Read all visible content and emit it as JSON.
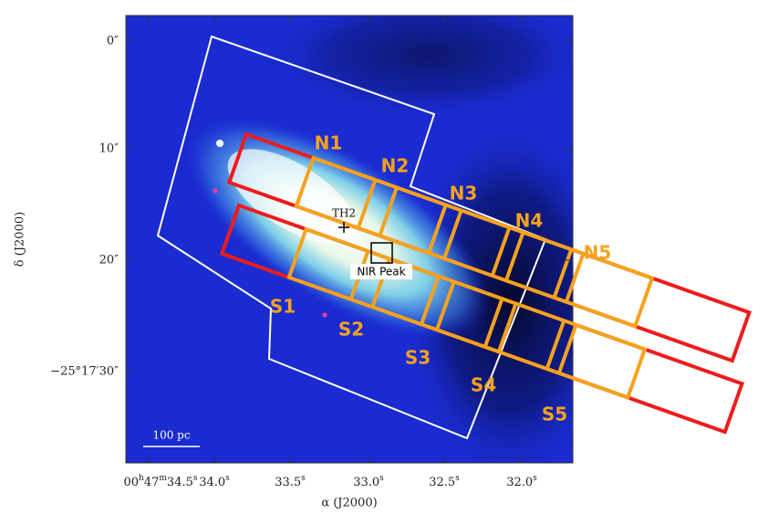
{
  "axes": {
    "y_label": "δ (J2000)",
    "x_label": "α (J2000)",
    "y_ticks": [
      "0″",
      "10″",
      "20″",
      "−25°17′30″"
    ],
    "x_ticks": [
      [
        [
          "00",
          "h"
        ],
        [
          "47",
          "m"
        ],
        [
          "34.5",
          "s"
        ]
      ],
      [
        [
          "34.0",
          "s"
        ]
      ],
      [
        [
          "33.5",
          "s"
        ]
      ],
      [
        [
          "33.0",
          "s"
        ]
      ],
      [
        [
          "32.5",
          "s"
        ]
      ],
      [
        [
          "32.0",
          "s"
        ]
      ]
    ]
  },
  "regions": {
    "north": [
      "N1",
      "N2",
      "N3",
      "N4",
      "N5"
    ],
    "south": [
      "S1",
      "S2",
      "S3",
      "S4",
      "S5"
    ]
  },
  "markers": {
    "th2": "TH2",
    "nir_peak": "NIR Peak"
  },
  "scale_bar": "100 pc"
}
